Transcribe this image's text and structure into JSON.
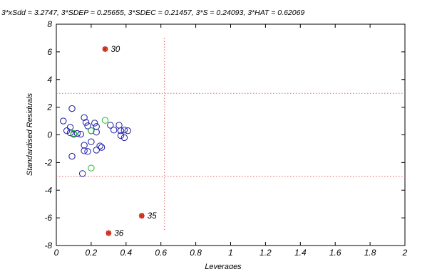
{
  "chart_data": {
    "type": "scatter",
    "title": "3*xSdd = 3.2747,  3*SDEP = 0.25655,    3*SDEC = 0.21457,    3*S = 0.24093,   3*HAT = 0.62069",
    "xlabel": "Leverages",
    "ylabel": "Standardised Residuals",
    "xlim": [
      0,
      2
    ],
    "ylim": [
      -8,
      8
    ],
    "xticks": [
      "0",
      "0.2",
      "0.4",
      "0.6",
      "0.8",
      "1",
      "1.2",
      "1.4",
      "1.6",
      "1.8",
      "2"
    ],
    "yticks": [
      "8",
      "6",
      "4",
      "2",
      "0",
      "-2",
      "-4",
      "-6",
      "-8"
    ],
    "grid": false,
    "reference_lines": {
      "residual_upper": 3,
      "residual_lower": -3,
      "leverage_threshold": 0.62069,
      "colors": {
        "horizontal": "#e06060",
        "vertical": "#e06060"
      }
    },
    "series": [
      {
        "color": "#1a1aa6",
        "marker": "circle",
        "points": [
          [
            0.04,
            1.0
          ],
          [
            0.06,
            0.3
          ],
          [
            0.09,
            1.9
          ],
          [
            0.08,
            0.55
          ],
          [
            0.08,
            0.15
          ],
          [
            0.1,
            0.05
          ],
          [
            0.12,
            0.1
          ],
          [
            0.14,
            0.05
          ],
          [
            0.16,
            1.25
          ],
          [
            0.17,
            0.9
          ],
          [
            0.18,
            0.65
          ],
          [
            0.2,
            0.3
          ],
          [
            0.22,
            0.85
          ],
          [
            0.23,
            0.6
          ],
          [
            0.23,
            0.2
          ],
          [
            0.16,
            -0.75
          ],
          [
            0.16,
            -1.15
          ],
          [
            0.18,
            -1.2
          ],
          [
            0.2,
            -0.5
          ],
          [
            0.23,
            -1.1
          ],
          [
            0.25,
            -0.8
          ],
          [
            0.26,
            -0.9
          ],
          [
            0.09,
            -1.55
          ],
          [
            0.15,
            -2.8
          ],
          [
            0.31,
            0.7
          ],
          [
            0.33,
            0.35
          ],
          [
            0.36,
            0.7
          ],
          [
            0.37,
            0.3
          ],
          [
            0.37,
            -0.05
          ],
          [
            0.39,
            -0.2
          ],
          [
            0.39,
            0.35
          ],
          [
            0.41,
            0.3
          ]
        ]
      },
      {
        "color": "#22bb22",
        "marker": "circle",
        "points": [
          [
            0.28,
            1.05
          ],
          [
            0.1,
            0.1
          ],
          [
            0.2,
            0.3
          ],
          [
            0.2,
            -2.4
          ]
        ]
      },
      {
        "color": "#cc2020",
        "marker": "star",
        "points": [
          [
            0.28,
            6.2
          ],
          [
            0.49,
            -5.85
          ],
          [
            0.3,
            -7.1
          ]
        ],
        "labels": [
          "30",
          "35",
          "36"
        ]
      }
    ]
  }
}
